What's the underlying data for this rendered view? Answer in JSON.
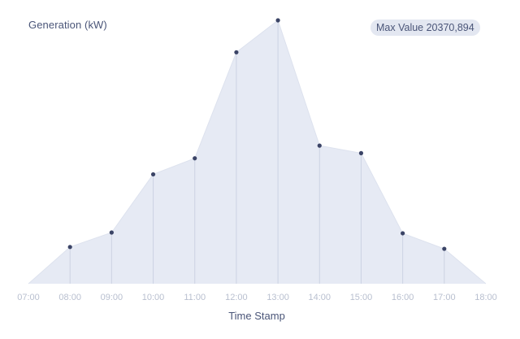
{
  "chart_data": {
    "type": "area",
    "ylabel": "Generation (kW)",
    "xlabel": "Time Stamp",
    "x": [
      "07:00",
      "08:00",
      "09:00",
      "10:00",
      "11:00",
      "12:00",
      "13:00",
      "14:00",
      "15:00",
      "16:00",
      "17:00",
      "18:00"
    ],
    "values": [
      0,
      2840000,
      3960000,
      8460000,
      9700000,
      17900000,
      20370894,
      10680000,
      10100000,
      3900000,
      2700000,
      0
    ],
    "markers": [
      "08:00",
      "09:00",
      "10:00",
      "11:00",
      "12:00",
      "13:00",
      "14:00",
      "15:00",
      "16:00",
      "17:00"
    ],
    "ylim": [
      0,
      20370894
    ],
    "grid": false,
    "max_badge": "Max Value 20370,894",
    "colors": {
      "area_fill": "#e6eaf4",
      "line": "#dde2ee",
      "drop_line": "#ccd3e3",
      "marker": "#3b4466",
      "text": "#4a5578",
      "tick_text": "#b8bfcf",
      "badge_bg": "#e3e7f1"
    }
  }
}
